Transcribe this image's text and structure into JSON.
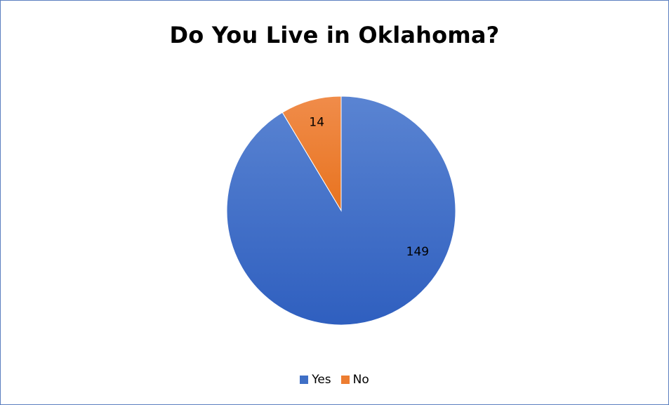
{
  "chart_data": {
    "type": "pie",
    "title": "Do You Live in Oklahoma?",
    "categories": [
      "Yes",
      "No"
    ],
    "values": [
      149,
      14
    ],
    "colors": [
      "#3f6fc6",
      "#ed7d31"
    ],
    "data_labels": [
      "149",
      "14"
    ],
    "legend_position": "bottom"
  }
}
